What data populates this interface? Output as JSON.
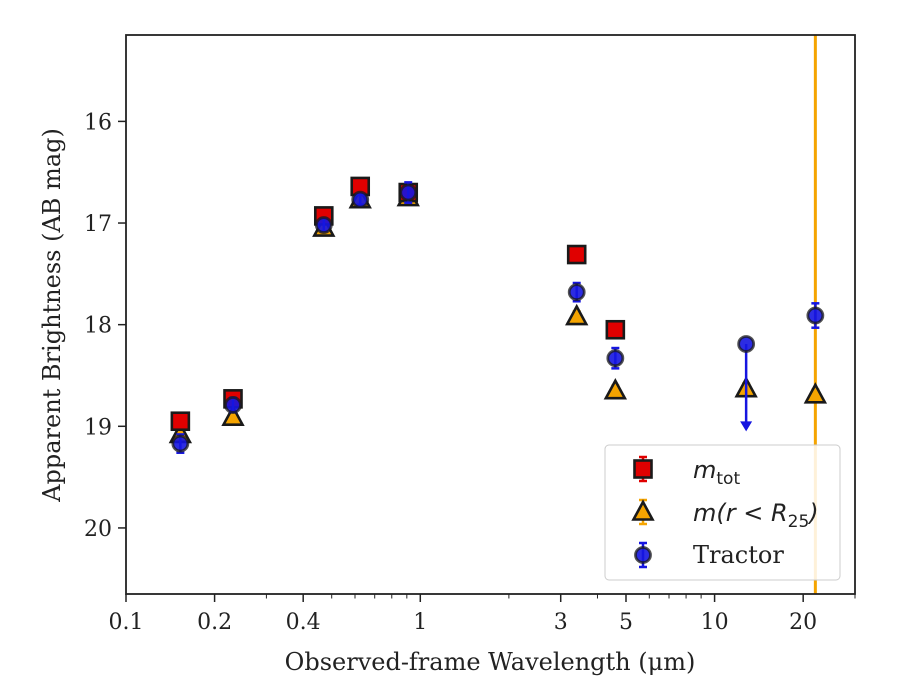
{
  "chart_data": {
    "type": "scatter",
    "xlabel": "Observed-frame Wavelength (μm)",
    "ylabel": "Apparent Brightness (AB mag)",
    "xscale": "log",
    "xlim": [
      0.1,
      30
    ],
    "ylim": [
      20.65,
      15.15
    ],
    "y_inverted": true,
    "xticks": [
      {
        "value": 0.1,
        "label": "0.1"
      },
      {
        "value": 0.2,
        "label": "0.2"
      },
      {
        "value": 0.4,
        "label": "0.4"
      },
      {
        "value": 1,
        "label": "1"
      },
      {
        "value": 3,
        "label": "3"
      },
      {
        "value": 5,
        "label": "5"
      },
      {
        "value": 10,
        "label": "10"
      },
      {
        "value": 20,
        "label": "20"
      }
    ],
    "yticks": [
      {
        "value": 16,
        "label": "16"
      },
      {
        "value": 17,
        "label": "17"
      },
      {
        "value": 18,
        "label": "18"
      },
      {
        "value": 19,
        "label": "19"
      },
      {
        "value": 20,
        "label": "20"
      }
    ],
    "legend_position": "lower-right",
    "series": [
      {
        "name": "m_tot",
        "legend_label": "m",
        "legend_sub": "tot",
        "marker": "square",
        "color": "#e00000",
        "points": [
          {
            "x": 0.153,
            "y": 18.95,
            "err": 0.07
          },
          {
            "x": 0.231,
            "y": 18.73,
            "err": 0.07
          },
          {
            "x": 0.47,
            "y": 16.93,
            "err": 0.07
          },
          {
            "x": 0.625,
            "y": 16.64,
            "err": 0.07
          },
          {
            "x": 0.91,
            "y": 16.7,
            "err": 0.06
          },
          {
            "x": 3.4,
            "y": 17.31,
            "err": 0.08
          },
          {
            "x": 4.6,
            "y": 18.05,
            "err": 0.07
          }
        ]
      },
      {
        "name": "m(r < R_25)",
        "legend_label": "m(r < R",
        "legend_sub": "25",
        "legend_tail": ")",
        "marker": "triangle",
        "color": "#f5a400",
        "points": [
          {
            "x": 0.153,
            "y": 19.08,
            "err": 0.05
          },
          {
            "x": 0.231,
            "y": 18.91,
            "err": 0.05
          },
          {
            "x": 0.47,
            "y": 17.05,
            "err": 0.05
          },
          {
            "x": 0.625,
            "y": 16.77,
            "err": 0.05
          },
          {
            "x": 0.91,
            "y": 16.75,
            "err": 0.05
          },
          {
            "x": 3.4,
            "y": 17.92,
            "err": 0.05
          },
          {
            "x": 4.6,
            "y": 18.65,
            "err": 0.05
          },
          {
            "x": 12.8,
            "y": 18.63,
            "err": 0.05
          },
          {
            "x": 22.0,
            "y": 18.69,
            "err": 0.05,
            "vertical_line": true
          }
        ]
      },
      {
        "name": "Tractor",
        "marker": "circle",
        "color": "#1515e0",
        "points": [
          {
            "x": 0.153,
            "y": 19.17,
            "err": 0.09
          },
          {
            "x": 0.231,
            "y": 18.79,
            "err": 0.07
          },
          {
            "x": 0.47,
            "y": 17.02,
            "err": 0.06
          },
          {
            "x": 0.625,
            "y": 16.77,
            "err": 0.05
          },
          {
            "x": 0.91,
            "y": 16.7,
            "err": 0.1
          },
          {
            "x": 3.4,
            "y": 17.68,
            "err": 0.09
          },
          {
            "x": 4.6,
            "y": 18.33,
            "err": 0.1
          },
          {
            "x": 12.8,
            "y": 18.19,
            "upper_limit_to": 19.02
          },
          {
            "x": 22.0,
            "y": 17.91,
            "err": 0.12
          }
        ]
      }
    ]
  }
}
